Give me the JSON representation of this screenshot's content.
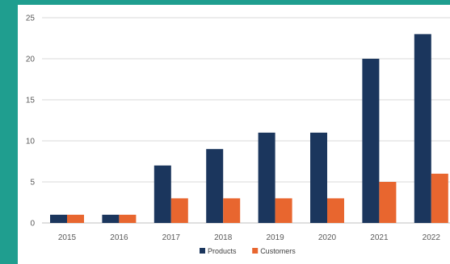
{
  "chart_data": {
    "type": "bar",
    "categories": [
      "2015",
      "2016",
      "2017",
      "2018",
      "2019",
      "2020",
      "2021",
      "2022"
    ],
    "series": [
      {
        "name": "Products",
        "values": [
          1,
          1,
          7,
          9,
          11,
          11,
          20,
          23
        ],
        "color": "#1b365d"
      },
      {
        "name": "Customers",
        "values": [
          1,
          1,
          3,
          3,
          3,
          3,
          5,
          6
        ],
        "color": "#e8662f"
      }
    ],
    "yticks": [
      "0",
      "5",
      "10",
      "15",
      "20",
      "25"
    ],
    "ylim": [
      0,
      25
    ],
    "grid": true,
    "legend_position": "bottom-center",
    "title": "",
    "xlabel": "",
    "ylabel": ""
  },
  "colors": {
    "frame": "#1f9e8f",
    "gridline": "#d9d9d9",
    "axis": "#bfbfbf"
  }
}
